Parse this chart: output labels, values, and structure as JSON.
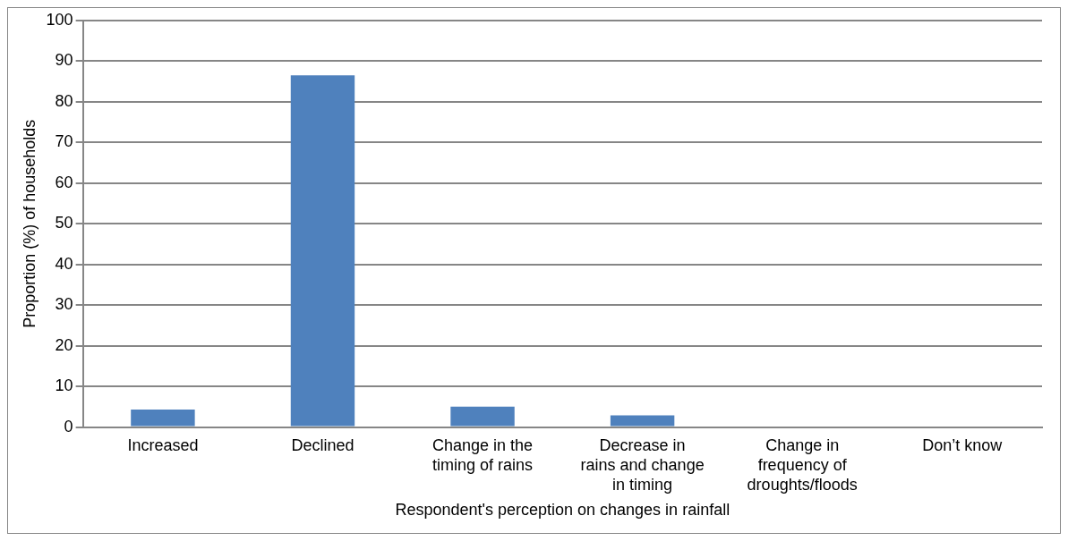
{
  "chart_data": {
    "type": "bar",
    "xlabel": "Respondent's perception on changes in rainfall",
    "ylabel": "Proportion (%) of households",
    "categories": [
      "Increased",
      "Declined",
      "Change in the timing of rains",
      "Decrease in rains and change in timing",
      "Change in frequency of droughts/floods",
      "Don’t know"
    ],
    "values": [
      4.3,
      86.5,
      5.0,
      2.9,
      0,
      0
    ],
    "color": "#4f81bd",
    "ylim": [
      0,
      100
    ],
    "yticks": [
      0,
      10,
      20,
      30,
      40,
      50,
      60,
      70,
      80,
      90,
      100
    ],
    "grid": "y",
    "legend": false
  }
}
